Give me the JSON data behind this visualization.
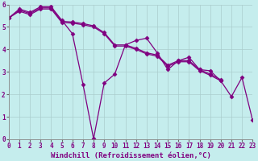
{
  "lines": [
    {
      "x": [
        0,
        1,
        2,
        3,
        4,
        5,
        6,
        7,
        8,
        9,
        10,
        11,
        12,
        13,
        14,
        15,
        16,
        17,
        18,
        19,
        20,
        21,
        22,
        23
      ],
      "y": [
        5.4,
        5.8,
        5.65,
        5.9,
        5.9,
        5.3,
        4.7,
        2.45,
        0.02,
        2.5,
        2.9,
        4.2,
        4.4,
        4.5,
        3.85,
        3.1,
        3.5,
        3.65,
        3.1,
        3.05,
        2.6,
        1.9,
        2.75,
        0.85
      ]
    },
    {
      "x": [
        0,
        1,
        2,
        3,
        4,
        5,
        6,
        7,
        8,
        9,
        10,
        11,
        12,
        13,
        14,
        15,
        16,
        17,
        18,
        19,
        20
      ],
      "y": [
        5.4,
        5.75,
        5.6,
        5.85,
        5.85,
        5.25,
        5.22,
        5.15,
        5.05,
        4.75,
        4.2,
        4.2,
        4.05,
        3.85,
        3.75,
        3.3,
        3.5,
        3.5,
        3.1,
        2.9,
        2.65
      ]
    },
    {
      "x": [
        0,
        1,
        2,
        3,
        4,
        5,
        6,
        7,
        8,
        9,
        10,
        11,
        12,
        13,
        14,
        15,
        16,
        17,
        18,
        19,
        20
      ],
      "y": [
        5.4,
        5.7,
        5.55,
        5.8,
        5.8,
        5.2,
        5.17,
        5.1,
        5.0,
        4.7,
        4.15,
        4.15,
        4.0,
        3.8,
        3.7,
        3.25,
        3.45,
        3.45,
        3.05,
        2.85,
        2.6
      ]
    }
  ],
  "line_color": "#800080",
  "marker": "D",
  "marker_size": 2.5,
  "xlim": [
    0,
    23
  ],
  "ylim": [
    0,
    6
  ],
  "yticks": [
    0,
    1,
    2,
    3,
    4,
    5,
    6
  ],
  "xtick_labels": [
    "0",
    "1",
    "2",
    "3",
    "4",
    "5",
    "6",
    "7",
    "8",
    "9",
    "10",
    "11",
    "12",
    "13",
    "14",
    "15",
    "16",
    "17",
    "18",
    "19",
    "20",
    "21",
    "22",
    "23"
  ],
  "xlabel": "Windchill (Refroidissement éolien,°C)",
  "background_color": "#c5eded",
  "grid_color": "#aacccc",
  "line_width": 0.9,
  "tick_fontsize": 5.5,
  "xlabel_fontsize": 6.5,
  "figwidth": 3.2,
  "figheight": 2.0,
  "dpi": 100
}
